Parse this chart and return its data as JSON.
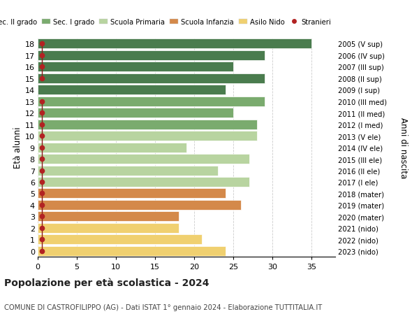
{
  "ages": [
    18,
    17,
    16,
    15,
    14,
    13,
    12,
    11,
    10,
    9,
    8,
    7,
    6,
    5,
    4,
    3,
    2,
    1,
    0
  ],
  "right_labels": [
    "2005 (V sup)",
    "2006 (IV sup)",
    "2007 (III sup)",
    "2008 (II sup)",
    "2009 (I sup)",
    "2010 (III med)",
    "2011 (II med)",
    "2012 (I med)",
    "2013 (V ele)",
    "2014 (IV ele)",
    "2015 (III ele)",
    "2016 (II ele)",
    "2017 (I ele)",
    "2018 (mater)",
    "2019 (mater)",
    "2020 (mater)",
    "2021 (nido)",
    "2022 (nido)",
    "2023 (nido)"
  ],
  "bar_values": [
    35,
    29,
    25,
    29,
    24,
    29,
    25,
    28,
    28,
    19,
    27,
    23,
    27,
    24,
    26,
    18,
    18,
    21,
    24
  ],
  "bar_colors": [
    "#4a7c4e",
    "#4a7c4e",
    "#4a7c4e",
    "#4a7c4e",
    "#4a7c4e",
    "#7aab6e",
    "#7aab6e",
    "#7aab6e",
    "#b8d4a0",
    "#b8d4a0",
    "#b8d4a0",
    "#b8d4a0",
    "#b8d4a0",
    "#d4894a",
    "#d4894a",
    "#d4894a",
    "#f0d070",
    "#f0d070",
    "#f0d070"
  ],
  "stranieri_values": [
    1,
    1,
    1,
    1,
    0,
    1,
    1,
    1,
    1,
    1,
    1,
    1,
    1,
    1,
    1,
    1,
    1,
    1,
    1
  ],
  "stranieri_dot_x": 0.5,
  "legend_labels": [
    "Sec. II grado",
    "Sec. I grado",
    "Scuola Primaria",
    "Scuola Infanzia",
    "Asilo Nido",
    "Stranieri"
  ],
  "legend_colors": [
    "#4a7c4e",
    "#7aab6e",
    "#b8d4a0",
    "#d4894a",
    "#f0d070",
    "#b22222"
  ],
  "ylabel": "Età alunni",
  "ylabel_right": "Anni di nascita",
  "title": "Popolazione per età scolastica - 2024",
  "subtitle": "COMUNE DI CASTROFILIPPO (AG) - Dati ISTAT 1° gennaio 2024 - Elaborazione TUTTITALIA.IT",
  "xlim": [
    0,
    38
  ],
  "xticks": [
    0,
    5,
    10,
    15,
    20,
    25,
    30,
    35
  ],
  "ylim": [
    -0.5,
    18.5
  ],
  "bg_color": "#ffffff",
  "grid_color": "#cccccc"
}
